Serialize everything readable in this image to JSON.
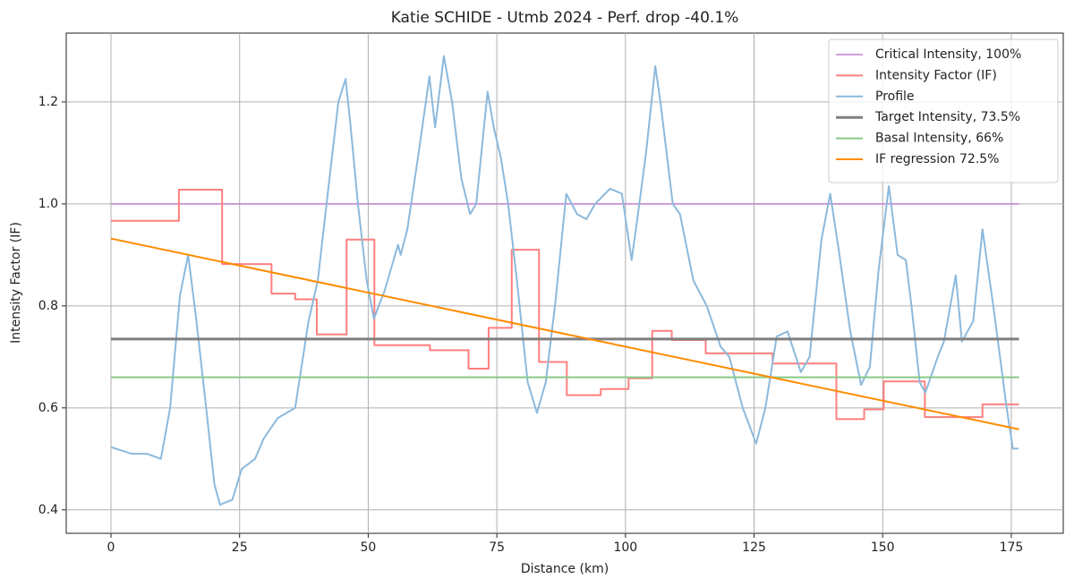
{
  "chart_data": {
    "type": "line",
    "title": "Katie SCHIDE - Utmb 2024 - Perf. drop -40.1%",
    "xlabel": "Distance (km)",
    "ylabel": "Intensity Factor (IF)",
    "xlim": [
      -8.7,
      185.1
    ],
    "ylim": [
      0.354,
      1.335
    ],
    "xticks": [
      0,
      25,
      50,
      75,
      100,
      125,
      150,
      175
    ],
    "yticks": [
      0.4,
      0.6,
      0.8,
      {
        "value": 1,
        "label": "1.0"
      },
      1.2
    ],
    "grid": true,
    "legend": "upper right",
    "series": [
      {
        "name": "Critical Intensity, 100%",
        "color": "#c27fd0",
        "linewidth": 1.5,
        "x": [
          0,
          176.5
        ],
        "values": [
          1,
          1
        ]
      },
      {
        "name": "Intensity Factor (IF)",
        "color": "#ff7f7f",
        "linewidth": 2,
        "x": [
          0,
          13.2,
          13.2,
          21.6,
          21.6,
          31.2,
          31.2,
          35.8,
          35.8,
          40,
          40,
          45.8,
          45.8,
          51.2,
          51.2,
          62,
          62,
          69.5,
          69.5,
          73.4,
          73.4,
          77.9,
          77.9,
          83.2,
          83.2,
          88.6,
          88.6,
          95.2,
          95.2,
          100.6,
          100.6,
          105.2,
          105.2,
          109,
          109,
          115.6,
          115.6,
          128.6,
          128.6,
          141,
          141,
          146.4,
          146.4,
          150.2,
          150.2,
          158.2,
          158.2,
          169.4,
          169.4,
          176.5
        ],
        "values": [
          0.967,
          0.967,
          1.028,
          1.028,
          0.882,
          0.882,
          0.824,
          0.824,
          0.813,
          0.813,
          0.744,
          0.744,
          0.93,
          0.93,
          0.723,
          0.723,
          0.713,
          0.713,
          0.677,
          0.677,
          0.757,
          0.757,
          0.91,
          0.91,
          0.69,
          0.69,
          0.625,
          0.625,
          0.637,
          0.637,
          0.658,
          0.658,
          0.751,
          0.751,
          0.733,
          0.733,
          0.707,
          0.707,
          0.687,
          0.687,
          0.578,
          0.578,
          0.597,
          0.597,
          0.652,
          0.652,
          0.582,
          0.582,
          0.607,
          0.607
        ]
      },
      {
        "name": "Profile",
        "color": "#8cb9dc",
        "linewidth": 2,
        "x": [
          0,
          4,
          7,
          9.7,
          11.5,
          13.4,
          15,
          16.5,
          18.5,
          20.1,
          21.2,
          23.6,
          25.4,
          28,
          29.7,
          32.4,
          35.8,
          38.4,
          40.2,
          41.9,
          44.2,
          45.6,
          46.6,
          48,
          49.7,
          51.1,
          53.2,
          55.8,
          56.3,
          57.6,
          59.8,
          61.9,
          63,
          64.7,
          66.3,
          68.1,
          69.8,
          71,
          73.2,
          74.4,
          75.8,
          77.2,
          78.9,
          81,
          82.8,
          84.5,
          86.3,
          88.5,
          90.6,
          92.4,
          94.1,
          97,
          99.3,
          101.2,
          102.3,
          104,
          105.8,
          106.8,
          109.2,
          110.6,
          113.2,
          115.8,
          118.5,
          120.2,
          122.8,
          125.4,
          127.2,
          129.4,
          131.5,
          134.1,
          135.8,
          138.1,
          139.8,
          141.6,
          143.7,
          145.8,
          147.5,
          149.2,
          151.2,
          152.9,
          154.5,
          155.6,
          157.2,
          158.3,
          160.7,
          161.9,
          164.2,
          165.4,
          167.6,
          169.4,
          171.5,
          174.1,
          175.3,
          176.4
        ],
        "values": [
          0.523,
          0.51,
          0.51,
          0.5,
          0.6,
          0.82,
          0.9,
          0.78,
          0.6,
          0.45,
          0.41,
          0.42,
          0.48,
          0.5,
          0.54,
          0.58,
          0.6,
          0.77,
          0.85,
          1.0,
          1.2,
          1.245,
          1.15,
          1.0,
          0.85,
          0.775,
          0.83,
          0.92,
          0.9,
          0.95,
          1.1,
          1.25,
          1.15,
          1.29,
          1.2,
          1.05,
          0.98,
          1.0,
          1.22,
          1.15,
          1.09,
          1.0,
          0.85,
          0.65,
          0.59,
          0.65,
          0.8,
          1.02,
          0.98,
          0.97,
          1.0,
          1.03,
          1.02,
          0.89,
          0.97,
          1.1,
          1.27,
          1.2,
          1.0,
          0.98,
          0.85,
          0.8,
          0.72,
          0.7,
          0.6,
          0.53,
          0.6,
          0.74,
          0.75,
          0.67,
          0.7,
          0.93,
          1.02,
          0.9,
          0.75,
          0.645,
          0.68,
          0.87,
          1.035,
          0.9,
          0.89,
          0.8,
          0.65,
          0.63,
          0.7,
          0.73,
          0.86,
          0.73,
          0.77,
          0.95,
          0.8,
          0.6,
          0.52,
          0.52
        ]
      },
      {
        "name": "Target Intensity, 73.5%",
        "color": "#7f7f7f",
        "linewidth": 3,
        "x": [
          0,
          176.5
        ],
        "values": [
          0.735,
          0.735
        ]
      },
      {
        "name": "Basal Intensity, 66%",
        "color": "#88c988",
        "linewidth": 2,
        "x": [
          0,
          176.5
        ],
        "values": [
          0.66,
          0.66
        ]
      },
      {
        "name": "IF regression 72.5%",
        "color": "#ff8c00",
        "linewidth": 2,
        "x": [
          0,
          176.5
        ],
        "values": [
          0.932,
          0.558
        ]
      }
    ]
  }
}
